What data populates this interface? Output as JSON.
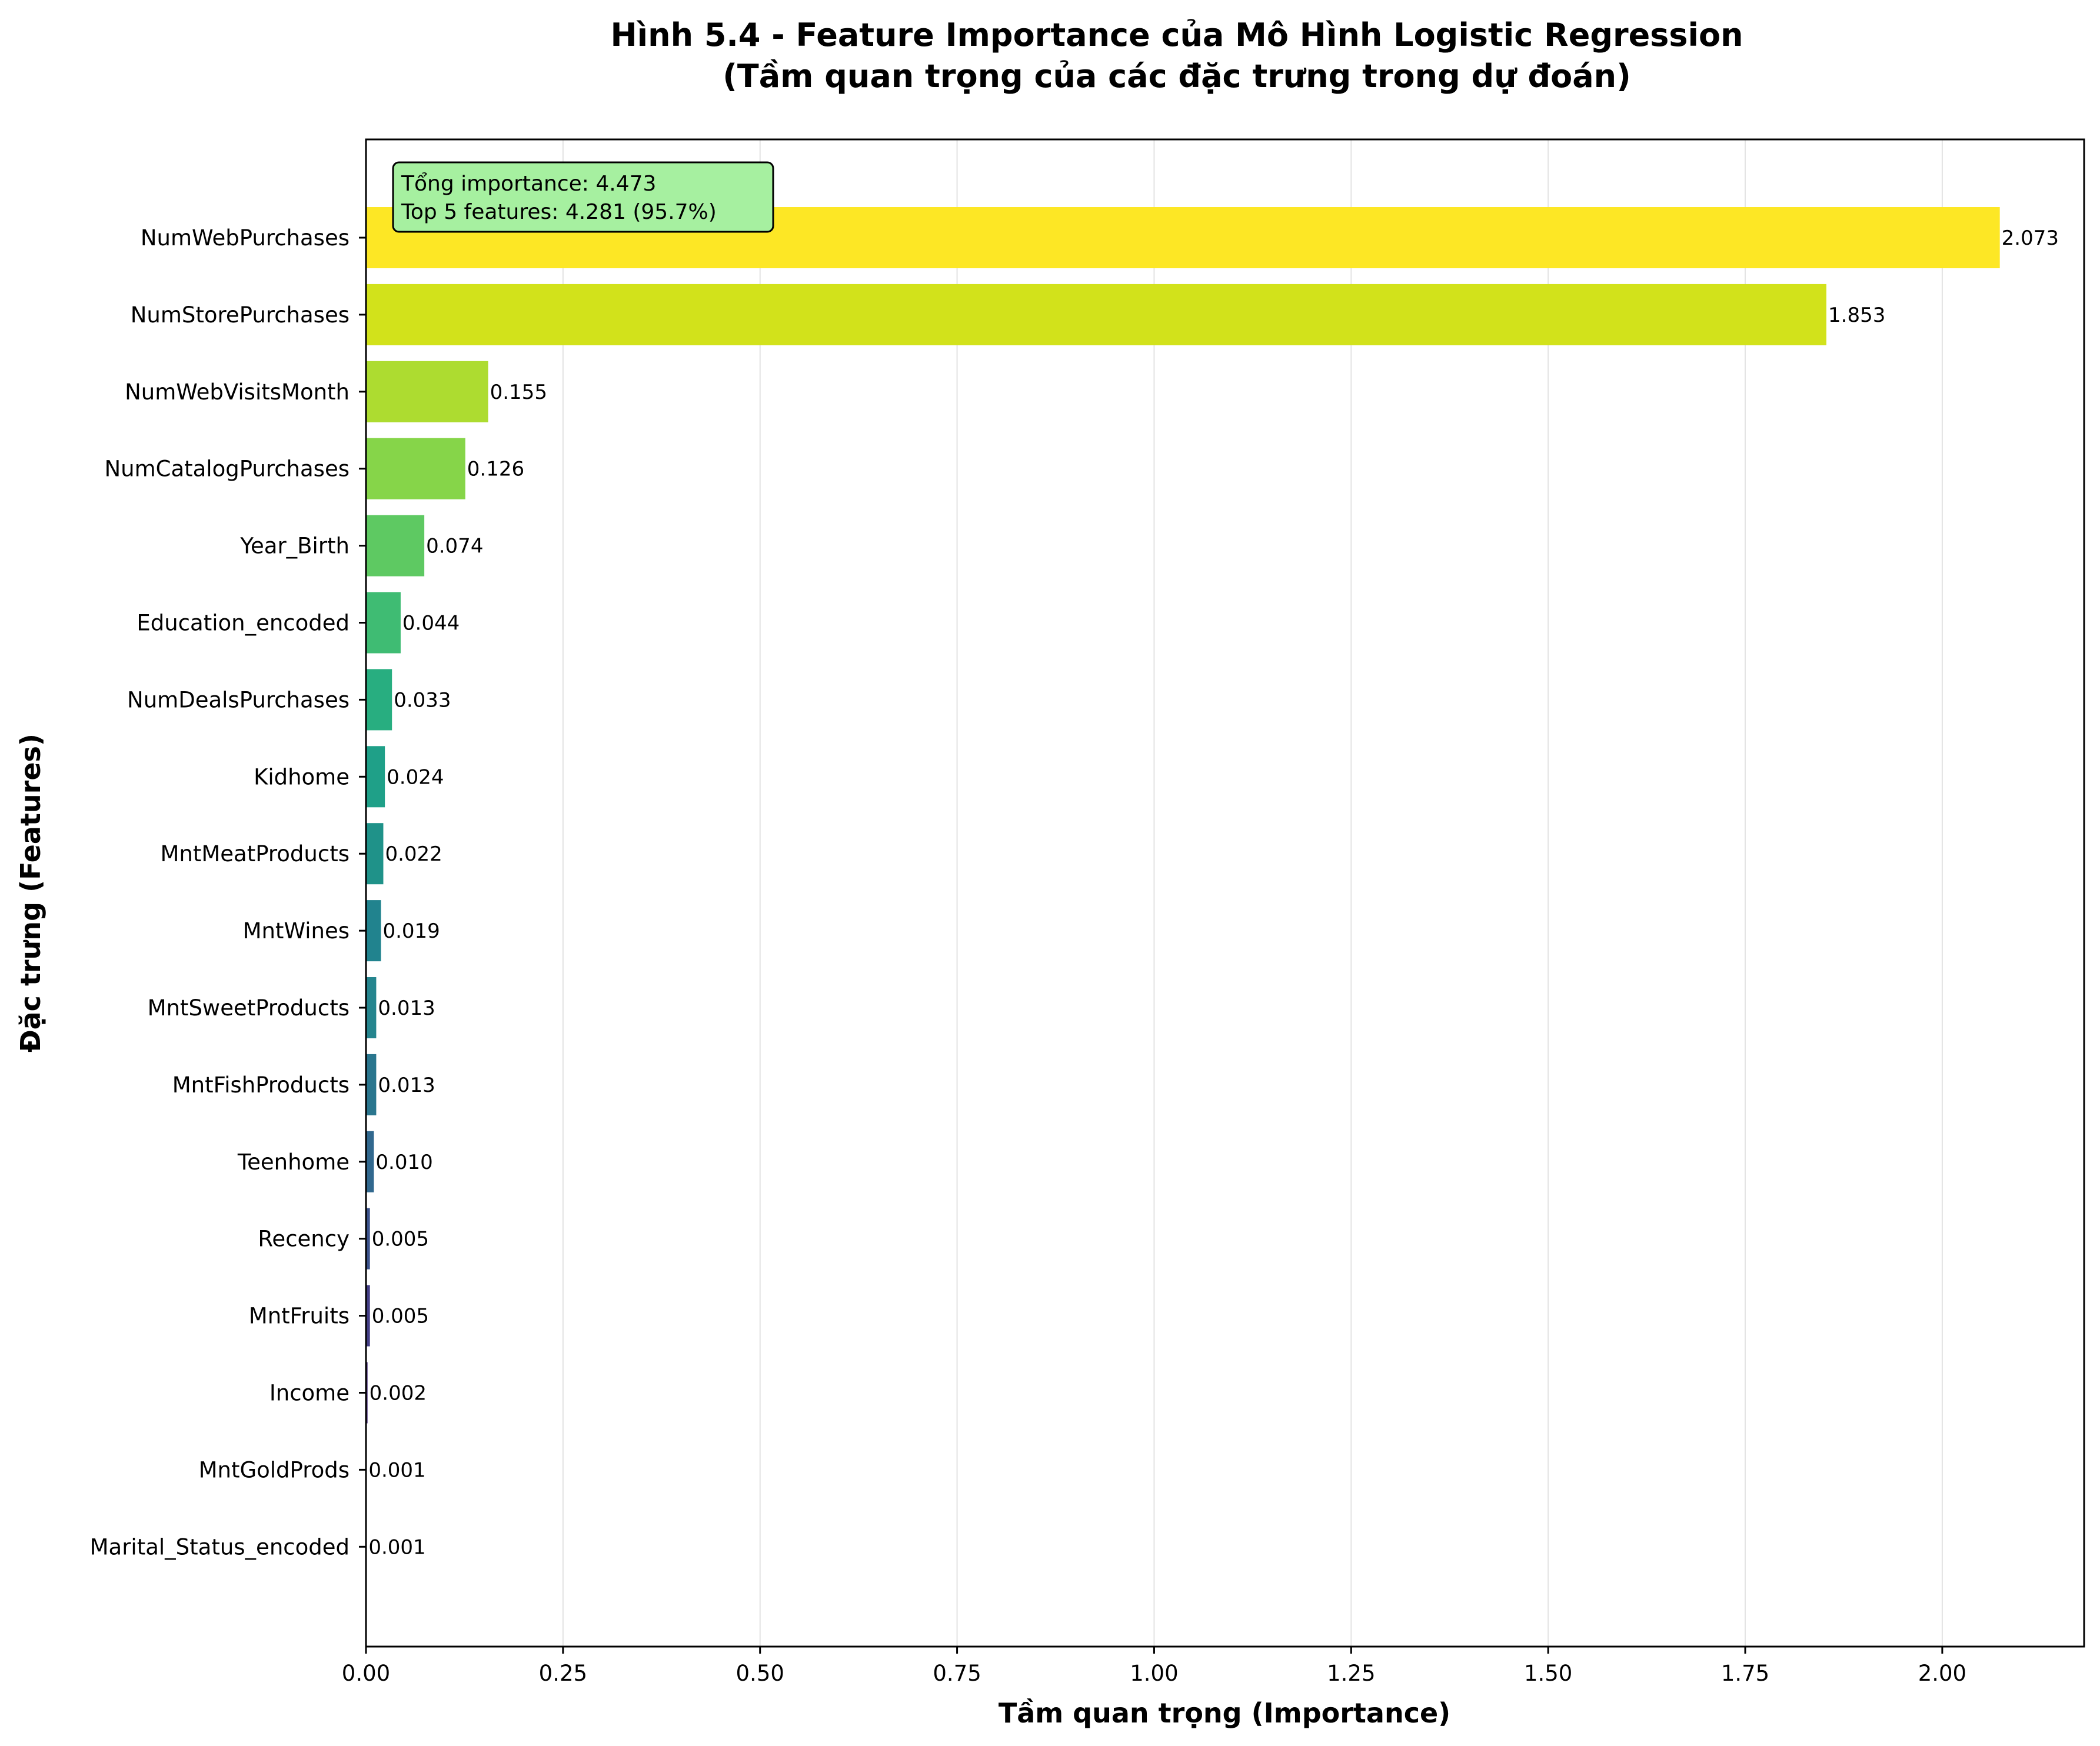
{
  "chart_data": {
    "type": "bar",
    "orientation": "horizontal",
    "title": "Hình 5.4 - Feature Importance của Mô Hình Logistic Regression",
    "subtitle": "(Tầm quan trọng của các đặc trưng trong dự đoán)",
    "xlabel": "Tầm quan trọng (Importance)",
    "ylabel": "Đặc trưng (Features)",
    "xlim": [
      0,
      2.18
    ],
    "xticks": [
      0,
      0.25,
      0.5,
      0.75,
      1.0,
      1.25,
      1.5,
      1.75,
      2.0
    ],
    "xtick_labels": [
      "0.00",
      "0.25",
      "0.50",
      "0.75",
      "1.00",
      "1.25",
      "1.50",
      "1.75",
      "2.00"
    ],
    "grid": "x",
    "categories": [
      "NumWebPurchases",
      "NumStorePurchases",
      "NumWebVisitsMonth",
      "NumCatalogPurchases",
      "Year_Birth",
      "Education_encoded",
      "NumDealsPurchases",
      "Kidhome",
      "MntMeatProducts",
      "MntWines",
      "MntSweetProducts",
      "MntFishProducts",
      "Teenhome",
      "Recency",
      "MntFruits",
      "Income",
      "MntGoldProds",
      "Marital_Status_encoded"
    ],
    "values": [
      2.073,
      1.853,
      0.155,
      0.126,
      0.074,
      0.044,
      0.033,
      0.024,
      0.022,
      0.019,
      0.013,
      0.013,
      0.01,
      0.005,
      0.005,
      0.002,
      0.001,
      0.001
    ],
    "value_labels": [
      "2.073",
      "1.853",
      "0.155",
      "0.126",
      "0.074",
      "0.044",
      "0.033",
      "0.024",
      "0.022",
      "0.019",
      "0.013",
      "0.013",
      "0.010",
      "0.005",
      "0.005",
      "0.002",
      "0.001",
      "0.001"
    ],
    "bar_colors": [
      "#fde725",
      "#d2e21b",
      "#addc30",
      "#86d549",
      "#5ec962",
      "#3fbc73",
      "#28ae80",
      "#1fa088",
      "#1f9289",
      "#21838e",
      "#25858e",
      "#2a768e",
      "#31688e",
      "#3b528b",
      "#433e85",
      "#472d7b",
      "#48186a",
      "#440154"
    ],
    "annotation": {
      "line1": "Tổng importance: 4.473",
      "line2": "Top 5 features: 4.281 (95.7%)",
      "background": "#a6f0a0"
    }
  }
}
